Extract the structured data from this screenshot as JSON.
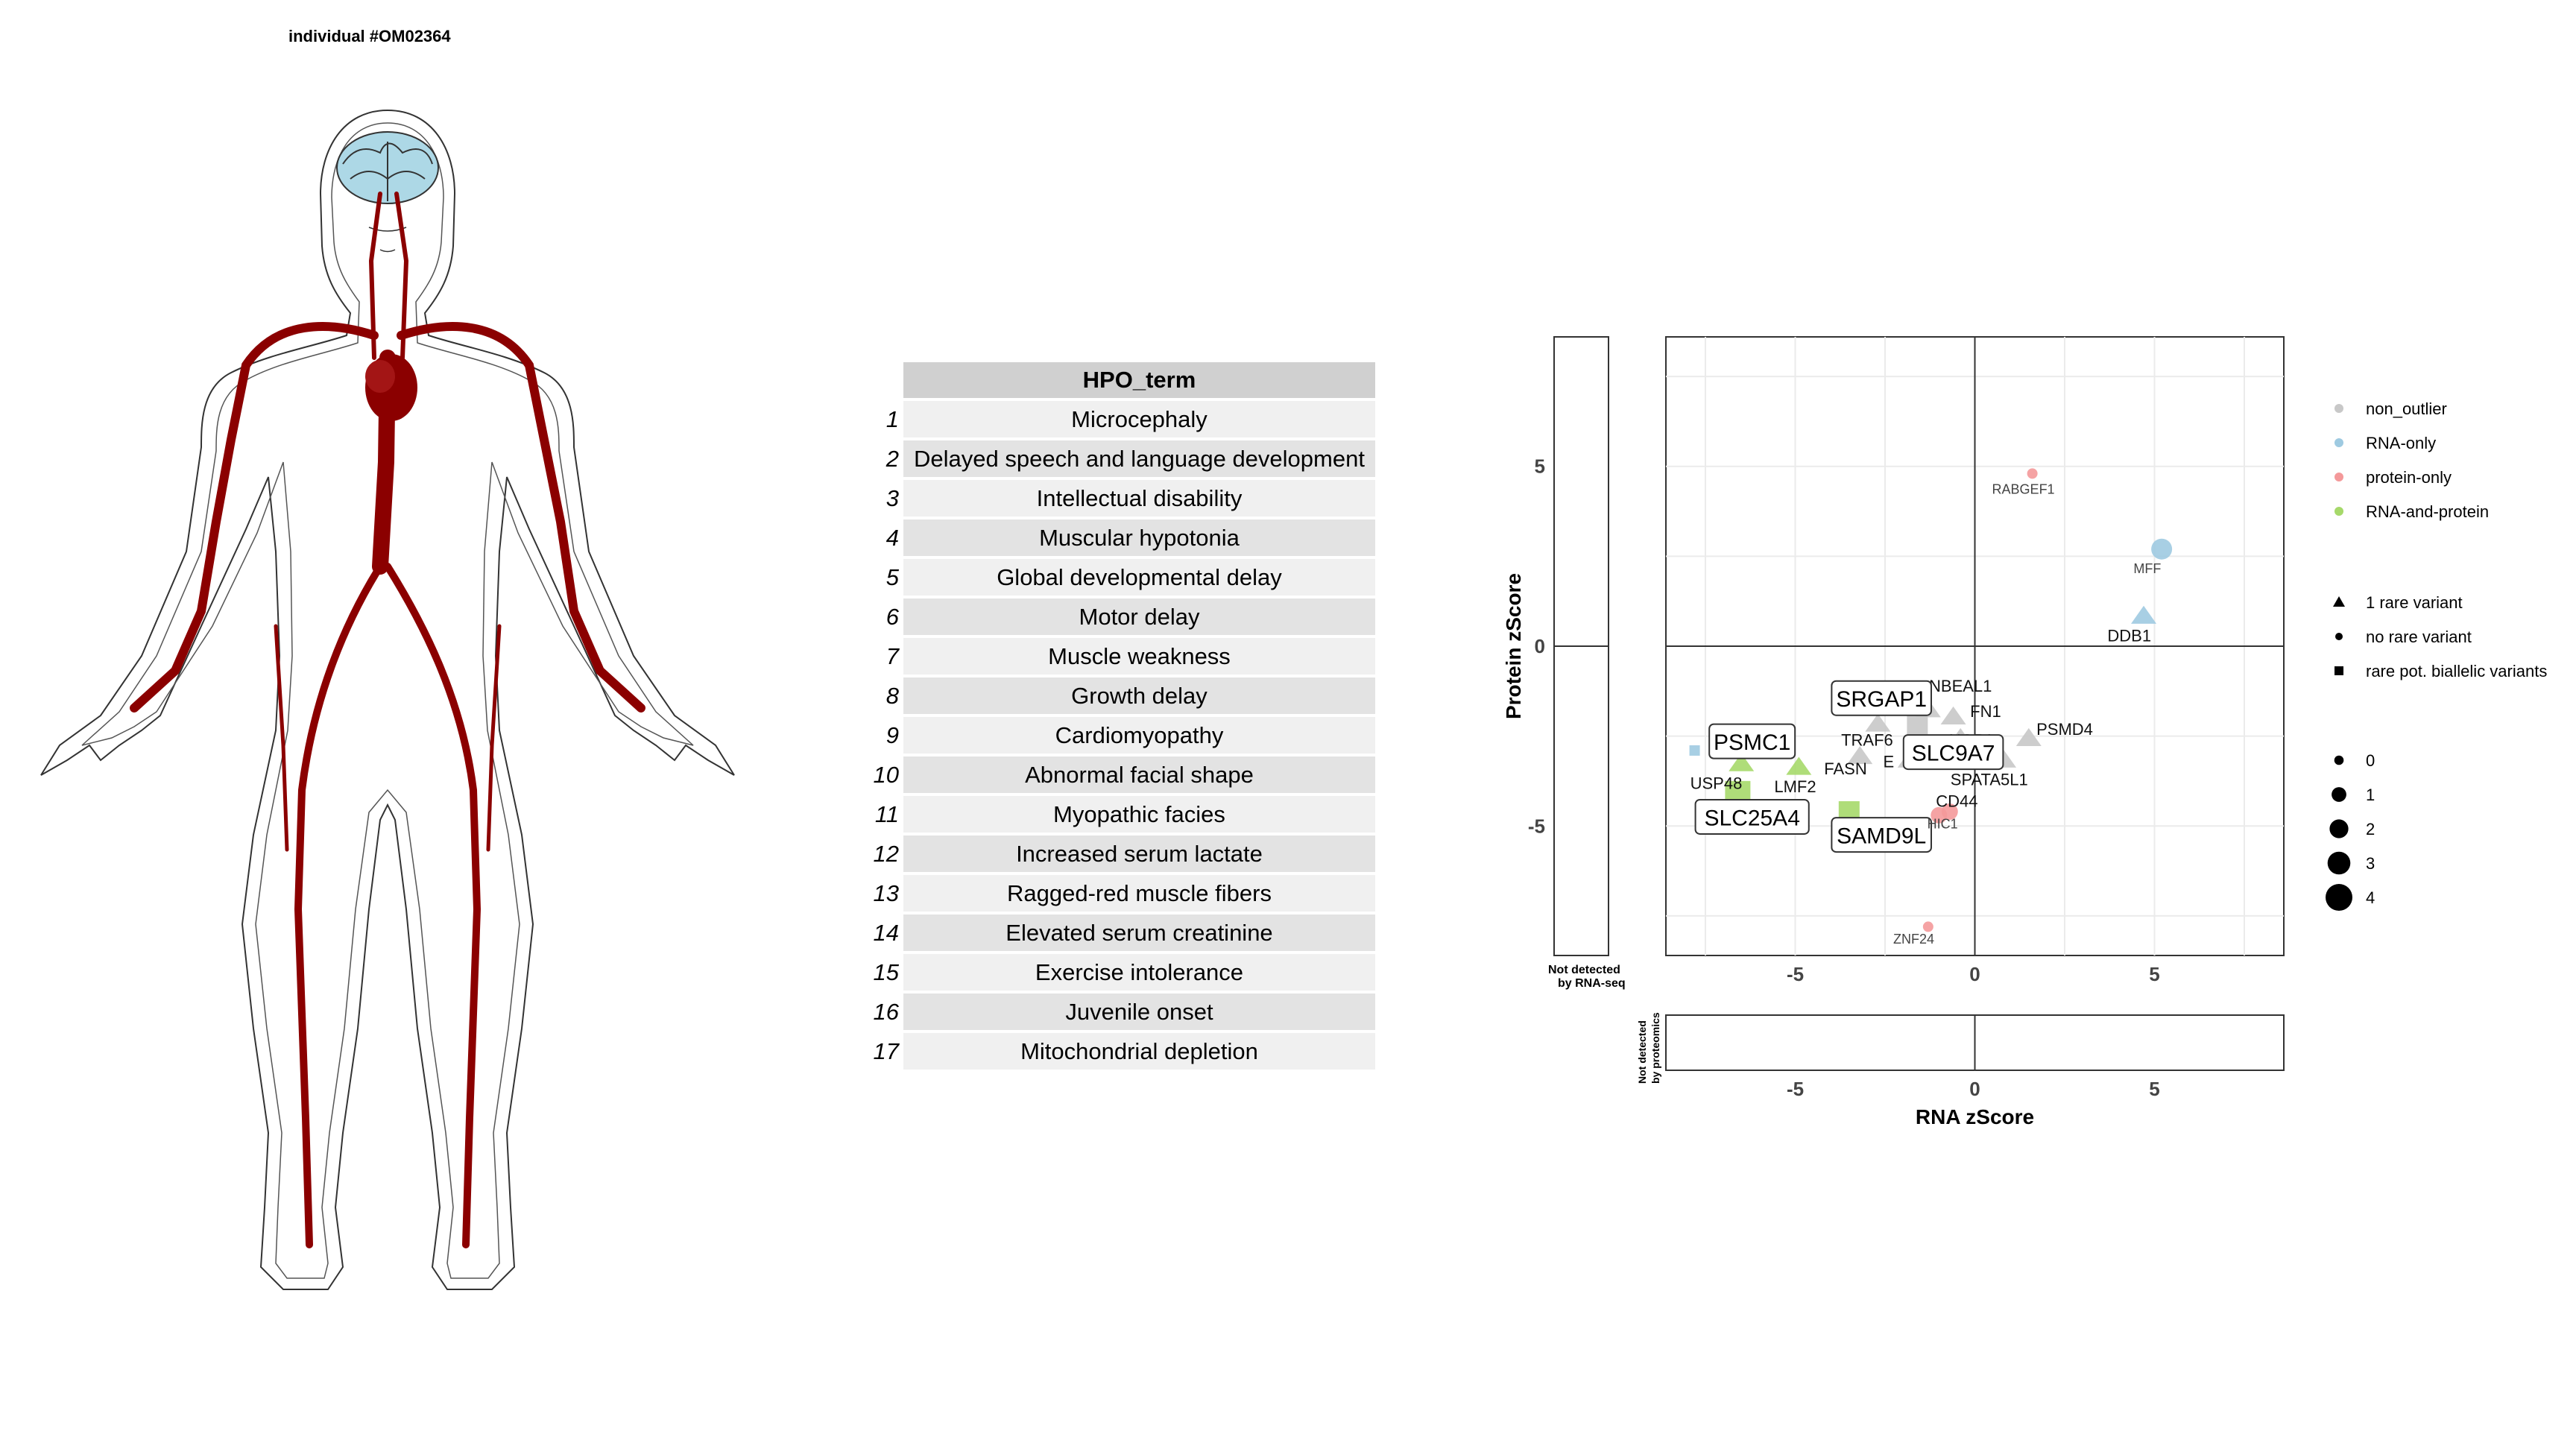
{
  "figure_title": "individual #OM02364",
  "hpo_table": {
    "header": "HPO_term",
    "rows": [
      {
        "n": "1",
        "term": "Microcephaly"
      },
      {
        "n": "2",
        "term": "Delayed speech and language development"
      },
      {
        "n": "3",
        "term": "Intellectual disability"
      },
      {
        "n": "4",
        "term": "Muscular hypotonia"
      },
      {
        "n": "5",
        "term": "Global developmental delay"
      },
      {
        "n": "6",
        "term": "Motor delay"
      },
      {
        "n": "7",
        "term": "Muscle weakness"
      },
      {
        "n": "8",
        "term": "Growth delay"
      },
      {
        "n": "9",
        "term": "Cardiomyopathy"
      },
      {
        "n": "10",
        "term": "Abnormal facial shape"
      },
      {
        "n": "11",
        "term": "Myopathic facies"
      },
      {
        "n": "12",
        "term": "Increased serum lactate"
      },
      {
        "n": "13",
        "term": "Ragged-red muscle fibers"
      },
      {
        "n": "14",
        "term": "Elevated serum creatinine"
      },
      {
        "n": "15",
        "term": "Exercise intolerance"
      },
      {
        "n": "16",
        "term": "Juvenile onset"
      },
      {
        "n": "17",
        "term": "Mitochondrial depletion"
      }
    ]
  },
  "anatomy": {
    "colors": {
      "brain": "#add8e6",
      "vessels": "#8b0000",
      "outline": "#000000"
    }
  },
  "chart_data": {
    "type": "scatter",
    "xlabel": "RNA zScore",
    "ylabel": "Protein zScore",
    "xlim": [
      -8.6,
      8.6
    ],
    "ylim": [
      -8.6,
      8.6
    ],
    "xticks": [
      -5,
      0,
      5
    ],
    "yticks": [
      -5,
      0,
      5
    ],
    "grid": true,
    "side_panel_label": [
      "Not detected",
      "by RNA-seq"
    ],
    "bottom_panel_label": [
      "Not detected",
      "by proteomics"
    ],
    "legend_placement": "right",
    "legend_category": [
      {
        "name": "non_outlier",
        "color": "#c8c8c8"
      },
      {
        "name": "RNA-only",
        "color": "#9ecae1"
      },
      {
        "name": "protein-only",
        "color": "#f4999a"
      },
      {
        "name": "RNA-and-protein",
        "color": "#a6d96a"
      }
    ],
    "legend_shape": [
      {
        "name": "1 rare variant",
        "shape": "triangle"
      },
      {
        "name": "no rare variant",
        "shape": "circle"
      },
      {
        "name": "rare pot. biallelic variants",
        "shape": "square"
      }
    ],
    "legend_size": [
      "0",
      "1",
      "2",
      "3",
      "4"
    ],
    "points": [
      {
        "gene": "RABGEF1",
        "x": 1.6,
        "y": 4.8,
        "cat": "protein-only",
        "shape": "circle",
        "size": 0
      },
      {
        "gene": "MFF",
        "x": 5.2,
        "y": 2.7,
        "cat": "RNA-only",
        "shape": "circle",
        "size": 2
      },
      {
        "gene": "DDB1",
        "x": 4.7,
        "y": 0.8,
        "cat": "RNA-only",
        "shape": "triangle",
        "size": 1
      },
      {
        "gene": "NBEAL1",
        "x": -1.3,
        "y": -1.8,
        "cat": "non_outlier",
        "shape": "triangle",
        "size": 1
      },
      {
        "gene": "FN1",
        "x": -0.6,
        "y": -2.0,
        "cat": "non_outlier",
        "shape": "triangle",
        "size": 1
      },
      {
        "gene": "SRGAP1",
        "x": -1.6,
        "y": -2.2,
        "cat": "non_outlier",
        "shape": "square",
        "size": 2
      },
      {
        "gene": "NOP1",
        "x": -0.4,
        "y": -2.6,
        "cat": "non_outlier",
        "shape": "triangle",
        "size": 1
      },
      {
        "gene": "PSMD4",
        "x": 1.5,
        "y": -2.6,
        "cat": "non_outlier",
        "shape": "triangle",
        "size": 1
      },
      {
        "gene": "TRAF6",
        "x": -2.7,
        "y": -2.2,
        "cat": "non_outlier",
        "shape": "triangle",
        "size": 1
      },
      {
        "gene": "SLC9A7",
        "x": -0.3,
        "y": -3.0,
        "cat": "non_outlier",
        "shape": "triangle",
        "size": 1
      },
      {
        "gene": "SPATA5L1",
        "x": 0.8,
        "y": -3.2,
        "cat": "non_outlier",
        "shape": "triangle",
        "size": 1
      },
      {
        "gene": "FASN",
        "x": -3.2,
        "y": -3.1,
        "cat": "non_outlier",
        "shape": "triangle",
        "size": 1
      },
      {
        "gene": "E",
        "x": -1.8,
        "y": -3.2,
        "cat": "non_outlier",
        "shape": "triangle",
        "size": 1
      },
      {
        "gene": "PSMC1",
        "x": -6.5,
        "y": -3.3,
        "cat": "RNA-and-protein",
        "shape": "triangle",
        "size": 1
      },
      {
        "gene": "USP48",
        "x": -7.8,
        "y": -2.9,
        "cat": "RNA-only",
        "shape": "square",
        "size": 0
      },
      {
        "gene": "LMF2",
        "x": -4.9,
        "y": -3.4,
        "cat": "RNA-and-protein",
        "shape": "triangle",
        "size": 1
      },
      {
        "gene": "SLC25A4",
        "x": -6.6,
        "y": -4.1,
        "cat": "RNA-and-protein",
        "shape": "square",
        "size": 3
      },
      {
        "gene": "SAMD9L",
        "x": -3.5,
        "y": -4.6,
        "cat": "RNA-and-protein",
        "shape": "square",
        "size": 2
      },
      {
        "gene": "CD44",
        "x": -0.7,
        "y": -4.6,
        "cat": "protein-only",
        "shape": "circle",
        "size": 1
      },
      {
        "gene": "HIC1",
        "x": -1.0,
        "y": -4.7,
        "cat": "protein-only",
        "shape": "circle",
        "size": 1
      },
      {
        "gene": "ZNF24",
        "x": -1.3,
        "y": -7.8,
        "cat": "protein-only",
        "shape": "circle",
        "size": 0
      }
    ],
    "labels": [
      {
        "gene": "RABGEF1",
        "x": 1.35,
        "y": 4.4,
        "boxed": false,
        "small": true
      },
      {
        "gene": "MFF",
        "x": 4.8,
        "y": 2.2,
        "boxed": false,
        "small": true
      },
      {
        "gene": "DDB1",
        "x": 4.3,
        "y": 0.3,
        "boxed": false,
        "small": false
      },
      {
        "gene": "NBEAL1",
        "x": -0.4,
        "y": -1.1,
        "boxed": false,
        "small": false
      },
      {
        "gene": "FN1",
        "x": 0.3,
        "y": -1.8,
        "boxed": false,
        "small": false
      },
      {
        "gene": "SRGAP1",
        "x": -2.6,
        "y": -1.6,
        "boxed": true,
        "small": false
      },
      {
        "gene": "NOP1",
        "x": -0.1,
        "y": -2.6,
        "boxed": false,
        "small": false
      },
      {
        "gene": "PSMD4",
        "x": 2.5,
        "y": -2.3,
        "boxed": false,
        "small": false
      },
      {
        "gene": "TRAF6",
        "x": -3.0,
        "y": -2.6,
        "boxed": false,
        "small": false
      },
      {
        "gene": "SLC9A7",
        "x": -0.6,
        "y": -3.1,
        "boxed": true,
        "small": false
      },
      {
        "gene": "SPATA5L1",
        "x": 0.4,
        "y": -3.7,
        "boxed": false,
        "small": false
      },
      {
        "gene": "FASN",
        "x": -3.6,
        "y": -3.4,
        "boxed": false,
        "small": false
      },
      {
        "gene": "E",
        "x": -2.4,
        "y": -3.2,
        "boxed": false,
        "small": false
      },
      {
        "gene": "PSMC1",
        "x": -6.2,
        "y": -2.8,
        "boxed": true,
        "small": false
      },
      {
        "gene": "USP48",
        "x": -7.2,
        "y": -3.8,
        "boxed": false,
        "small": false
      },
      {
        "gene": "LMF2",
        "x": -5.0,
        "y": -3.9,
        "boxed": false,
        "small": false
      },
      {
        "gene": "SLC25A4",
        "x": -6.2,
        "y": -4.9,
        "boxed": true,
        "small": false
      },
      {
        "gene": "SAMD9L",
        "x": -2.6,
        "y": -5.4,
        "boxed": true,
        "small": false
      },
      {
        "gene": "CD44",
        "x": -0.5,
        "y": -4.3,
        "boxed": false,
        "small": false
      },
      {
        "gene": "HIC1",
        "x": -0.9,
        "y": -4.9,
        "boxed": false,
        "small": true
      },
      {
        "gene": "ZNF24",
        "x": -1.7,
        "y": -8.1,
        "boxed": false,
        "small": true
      }
    ]
  }
}
